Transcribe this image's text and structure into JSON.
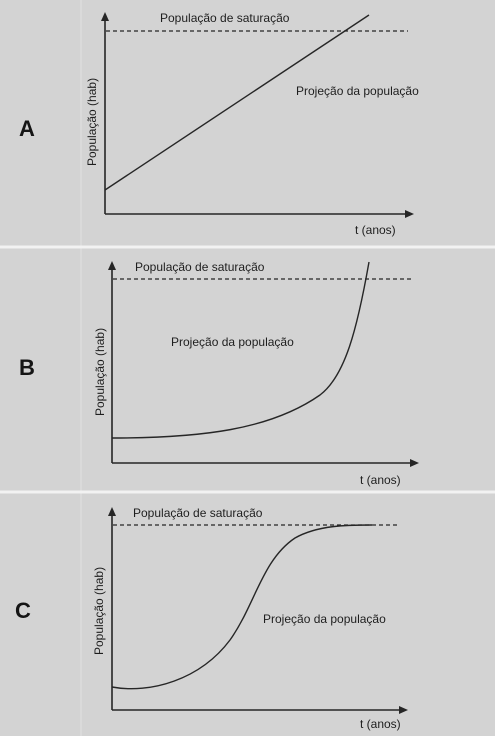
{
  "panels": [
    {
      "letter": "A",
      "saturation_label": "População de saturação",
      "projection_label": "Projeção da população",
      "y_axis_label": "População (hab)",
      "x_axis_label": "t (anos)",
      "curve_shape": "linear"
    },
    {
      "letter": "B",
      "saturation_label": "População de saturação",
      "projection_label": "Projeção da população",
      "y_axis_label": "População (hab)",
      "x_axis_label": "t (anos)",
      "curve_shape": "exponential"
    },
    {
      "letter": "C",
      "saturation_label": "População de saturação",
      "projection_label": "Projeção da população",
      "y_axis_label": "População (hab)",
      "x_axis_label": "t (anos)",
      "curve_shape": "logistic"
    }
  ],
  "colors": {
    "background": "#d3d3d3",
    "separator": "#f2f2f2",
    "line": "#262626"
  }
}
